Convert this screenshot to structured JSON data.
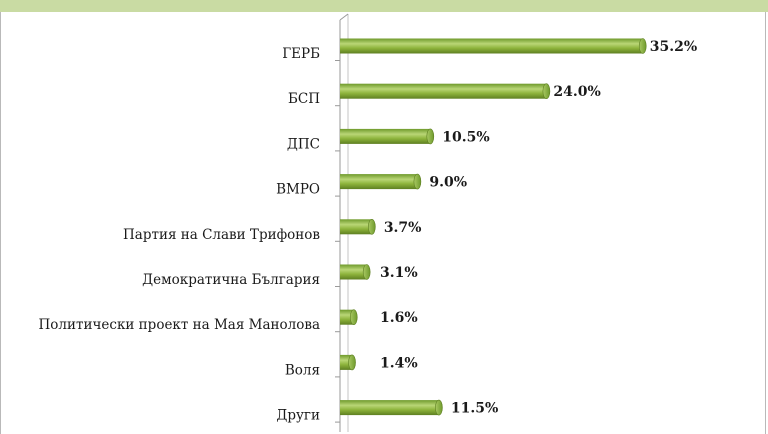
{
  "chart_data": {
    "type": "bar",
    "orientation": "horizontal",
    "categories": [
      "ГЕРБ",
      "БСП",
      "ДПС",
      "ВМРО",
      "Партия на Слави Трифонов",
      "Демократична България",
      "Политически проект на Мая Манолова",
      "Воля",
      "Други"
    ],
    "values": [
      35.2,
      24.0,
      10.5,
      9.0,
      3.7,
      3.1,
      1.6,
      1.4,
      11.5
    ],
    "value_labels": [
      "35.2%",
      "24.0%",
      "10.5%",
      "9.0%",
      "3.7%",
      "3.1%",
      "1.6%",
      "1.4%",
      "11.5%"
    ],
    "xlim": [
      0,
      40
    ],
    "grid": false,
    "legend": "none",
    "bar_color": "#8db33b",
    "bar_highlight": "#b9d676",
    "bar_shadow": "#5e7f22"
  }
}
